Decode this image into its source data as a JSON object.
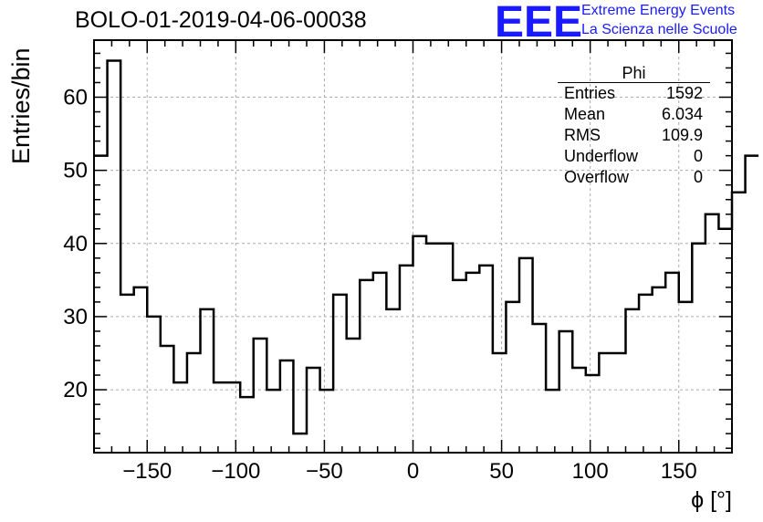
{
  "chart_data": {
    "type": "bar",
    "title": "BOLO-01-2019-04-06-00038",
    "xlabel": "ϕ [°]",
    "ylabel": "Entries/bin",
    "xlim": [
      -180,
      180
    ],
    "ylim": [
      11.4,
      67.8
    ],
    "bin_width": 7.5,
    "grid": true,
    "x_ticks": [
      -150,
      -100,
      -50,
      0,
      50,
      100,
      150
    ],
    "x_tick_labels": [
      "−150",
      "−100",
      "−50",
      "0",
      "50",
      "100",
      "150"
    ],
    "y_ticks": [
      20,
      30,
      40,
      50,
      60
    ],
    "y_tick_labels": [
      "20",
      "30",
      "40",
      "50",
      "60"
    ],
    "values": [
      52,
      65,
      33,
      34,
      30,
      26,
      21,
      25,
      31,
      21,
      21,
      19,
      27,
      20,
      24,
      14,
      23,
      20,
      33,
      27,
      35,
      36,
      31,
      37,
      41,
      40,
      40,
      35,
      36,
      37,
      25,
      32,
      38,
      29,
      20,
      28,
      23,
      22,
      25,
      25,
      31,
      33,
      34,
      36,
      32,
      40,
      44,
      42,
      47,
      52
    ]
  },
  "stats_box": {
    "title": "Phi",
    "rows": [
      {
        "label": "Entries",
        "value": "1592"
      },
      {
        "label": "Mean",
        "value": "6.034"
      },
      {
        "label": "RMS",
        "value": "109.9"
      },
      {
        "label": "Underflow",
        "value": "0"
      },
      {
        "label": "Overflow",
        "value": "0"
      }
    ]
  },
  "logo": {
    "mark": "EEE",
    "line1": "Extreme Energy Events",
    "line2": "La Scienza nelle Scuole",
    "color": "#1a1aff"
  }
}
